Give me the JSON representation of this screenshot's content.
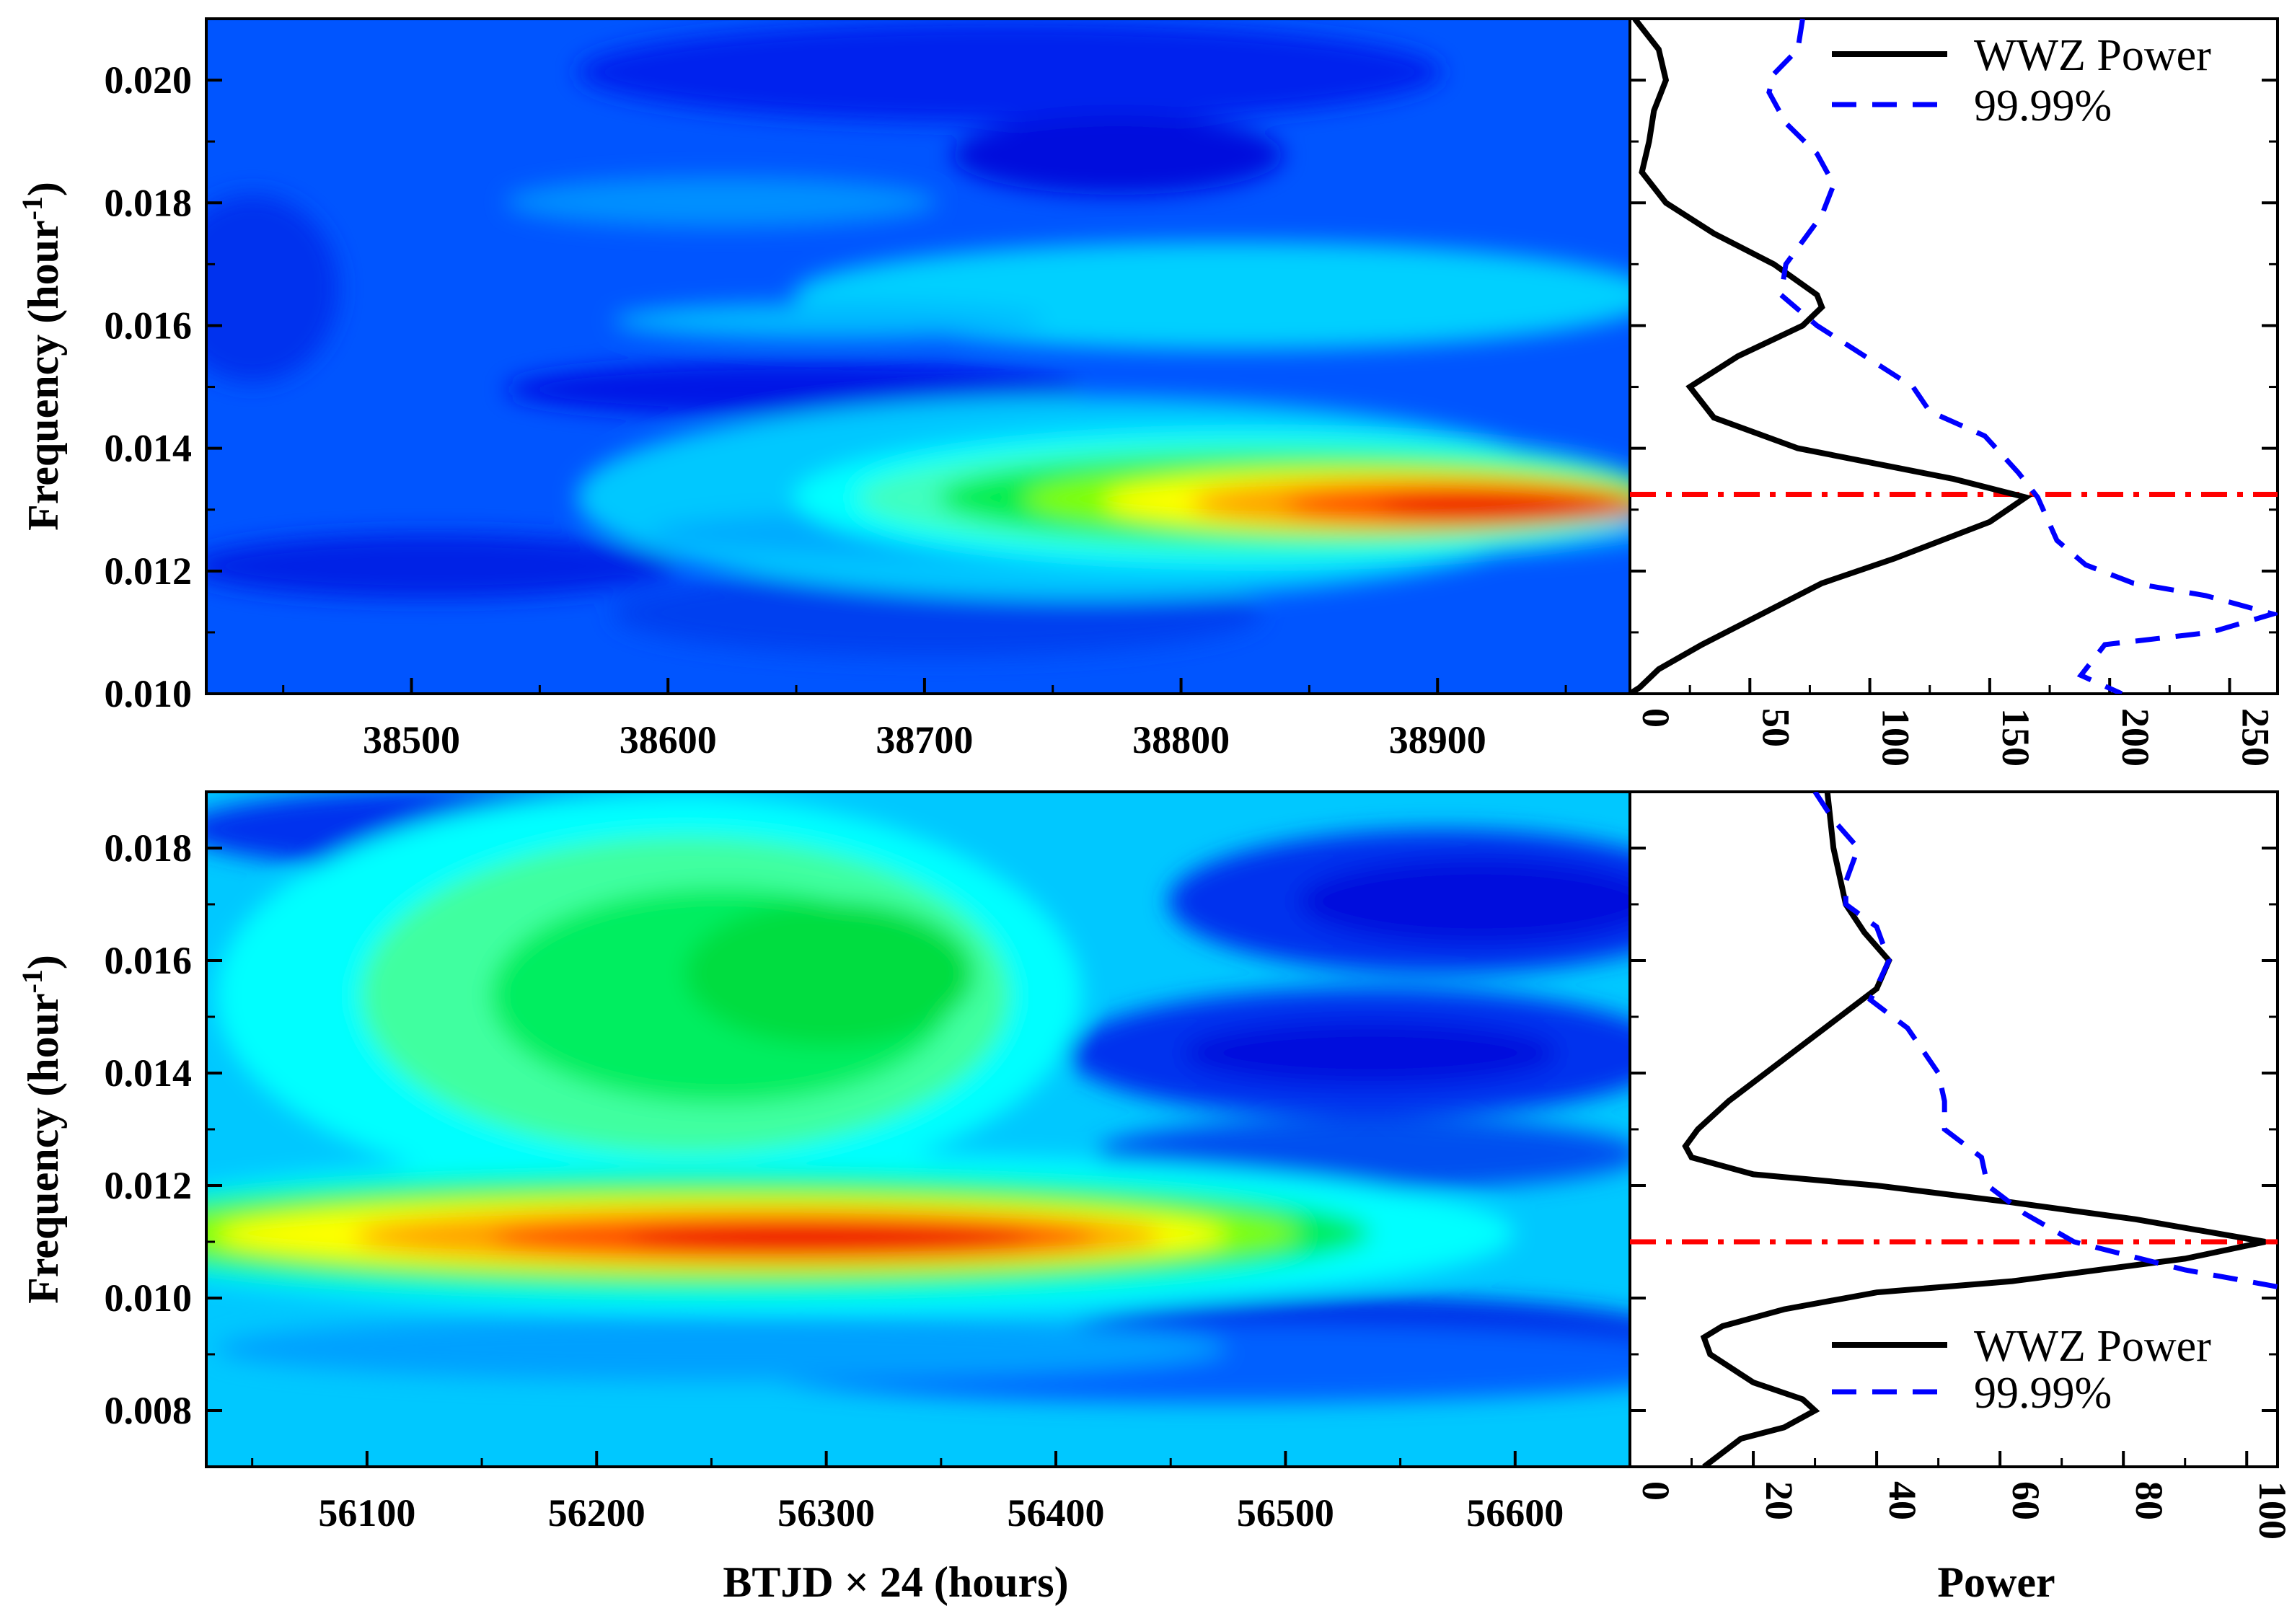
{
  "chart_data": [
    {
      "type": "heatmap",
      "panel": "top",
      "title": "",
      "xlabel": "",
      "ylabel": "Frequency (hour",
      "ylabel_sup": "-1",
      "ylabel_end": ")",
      "xlim": [
        38420,
        38975
      ],
      "ylim": [
        0.01,
        0.021
      ],
      "xticks": [
        38500,
        38600,
        38700,
        38800,
        38900
      ],
      "xtick_labels": [
        "38500",
        "38600",
        "38700",
        "38800",
        "38900"
      ],
      "yticks": [
        0.01,
        0.012,
        0.014,
        0.016,
        0.018,
        0.02
      ],
      "ytick_labels": [
        "0.010",
        "0.012",
        "0.014",
        "0.016",
        "0.018",
        "0.020"
      ],
      "colormap": "jet",
      "peak_frequency": 0.0131,
      "peak_time": 38930
    },
    {
      "type": "line",
      "panel": "top-side",
      "xlabel": "",
      "ylim": [
        0.01,
        0.021
      ],
      "xlim": [
        0,
        270
      ],
      "xticks": [
        0,
        50,
        100,
        150,
        200,
        250
      ],
      "xtick_labels": [
        "0",
        "50",
        "100",
        "150",
        "200",
        "250"
      ],
      "legend": [
        "WWZ Power",
        "99.99%"
      ],
      "legend_position": "top-right",
      "reference_line_frequency": 0.01325,
      "series": [
        {
          "name": "WWZ Power",
          "style": "solid",
          "color": "#000000",
          "frequency": [
            0.021,
            0.0205,
            0.02,
            0.0195,
            0.019,
            0.0185,
            0.018,
            0.0175,
            0.017,
            0.0165,
            0.0163,
            0.016,
            0.0155,
            0.015,
            0.0145,
            0.014,
            0.0135,
            0.0132,
            0.0128,
            0.0122,
            0.0118,
            0.0113,
            0.0108,
            0.0104,
            0.0101,
            0.01
          ],
          "power": [
            2,
            12,
            15,
            10,
            8,
            5,
            15,
            35,
            60,
            78,
            80,
            72,
            45,
            25,
            35,
            70,
            135,
            165,
            150,
            110,
            80,
            55,
            30,
            12,
            4,
            0
          ]
        },
        {
          "name": "99.99%",
          "style": "dashed",
          "color": "#0000ff",
          "frequency": [
            0.021,
            0.0205,
            0.0201,
            0.0198,
            0.0193,
            0.0188,
            0.0183,
            0.0178,
            0.017,
            0.0165,
            0.016,
            0.015,
            0.0146,
            0.0142,
            0.0136,
            0.0132,
            0.0125,
            0.0121,
            0.0118,
            0.0116,
            0.0113,
            0.011,
            0.0108,
            0.0103,
            0.01
          ],
          "power": [
            72,
            70,
            60,
            58,
            65,
            78,
            85,
            80,
            65,
            63,
            78,
            118,
            125,
            148,
            162,
            170,
            178,
            190,
            210,
            240,
            268,
            242,
            198,
            188,
            205
          ]
        }
      ]
    },
    {
      "type": "heatmap",
      "panel": "bottom",
      "xlabel": "BTJD × 24 (hours)",
      "ylabel": "Frequency (hour",
      "ylabel_sup": "-1",
      "ylabel_end": ")",
      "xlim": [
        56030,
        56650
      ],
      "ylim": [
        0.007,
        0.019
      ],
      "xticks": [
        56100,
        56200,
        56300,
        56400,
        56500,
        56600
      ],
      "xtick_labels": [
        "56100",
        "56200",
        "56300",
        "56400",
        "56500",
        "56600"
      ],
      "yticks": [
        0.008,
        0.01,
        0.012,
        0.014,
        0.016,
        0.018
      ],
      "ytick_labels": [
        "0.008",
        "0.010",
        "0.012",
        "0.014",
        "0.016",
        "0.018"
      ],
      "colormap": "jet",
      "peak_frequency": 0.011,
      "peak_time": 56320
    },
    {
      "type": "line",
      "panel": "bottom-side",
      "xlabel": "Power",
      "ylim": [
        0.007,
        0.019
      ],
      "xlim": [
        0,
        105
      ],
      "xticks": [
        0,
        20,
        40,
        60,
        80,
        100
      ],
      "xtick_labels": [
        "0",
        "20",
        "40",
        "60",
        "80",
        "100"
      ],
      "legend": [
        "WWZ Power",
        "99.99%"
      ],
      "legend_position": "bottom-right",
      "reference_line_frequency": 0.011,
      "series": [
        {
          "name": "WWZ Power",
          "style": "solid",
          "color": "#000000",
          "frequency": [
            0.019,
            0.018,
            0.017,
            0.0165,
            0.016,
            0.0155,
            0.015,
            0.0145,
            0.014,
            0.0135,
            0.013,
            0.0127,
            0.0125,
            0.0122,
            0.012,
            0.0117,
            0.0114,
            0.011,
            0.0107,
            0.0103,
            0.0101,
            0.0098,
            0.0095,
            0.0093,
            0.009,
            0.0085,
            0.0082,
            0.008,
            0.0077,
            0.0075,
            0.007
          ],
          "power": [
            32,
            33,
            35,
            38,
            42,
            40,
            34,
            28,
            22,
            16,
            11,
            9,
            10,
            20,
            40,
            62,
            82,
            103,
            90,
            62,
            40,
            25,
            15,
            12,
            13,
            20,
            28,
            30,
            25,
            18,
            12
          ]
        },
        {
          "name": "99.99%",
          "style": "dashed",
          "color": "#0000ff",
          "frequency": [
            0.019,
            0.0185,
            0.018,
            0.0174,
            0.017,
            0.0166,
            0.016,
            0.0153,
            0.0148,
            0.014,
            0.0135,
            0.013,
            0.0125,
            0.012,
            0.0115,
            0.011,
            0.0105,
            0.0102
          ],
          "power": [
            30,
            33,
            37,
            35,
            35,
            40,
            42,
            39,
            45,
            50,
            51,
            51,
            57,
            58,
            64,
            72,
            90,
            105
          ]
        }
      ]
    }
  ]
}
